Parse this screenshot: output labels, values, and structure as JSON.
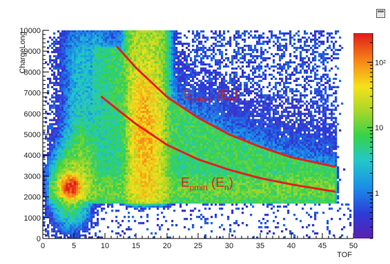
{
  "window": {
    "toolbar_icon": "canvas-editor-icon"
  },
  "chart_data": {
    "type": "heatmap",
    "title": "",
    "xlabel": "TOF",
    "ylabel": "ChargeLong",
    "xlim": [
      0,
      50
    ],
    "ylim": [
      0,
      10000
    ],
    "x_ticks": [
      "0",
      "5",
      "10",
      "15",
      "20",
      "25",
      "30",
      "35",
      "40",
      "45",
      "50"
    ],
    "y_ticks": [
      "0",
      "1000",
      "2000",
      "3000",
      "4000",
      "5000",
      "6000",
      "7000",
      "8000",
      "9000",
      "10000"
    ],
    "z_scale": "log",
    "z_ticks": [
      "1",
      "10",
      "10²"
    ],
    "z_tick_values": [
      1,
      10,
      100
    ],
    "z_range": [
      0.2,
      280
    ],
    "gamma_flash_x": 4.5,
    "gamma_flash_y": 2500,
    "curves": [
      {
        "name": "Epmax",
        "label_main": "E",
        "label_sub": "pmax",
        "label_arg": "(E",
        "label_arg_sub": "n",
        "label_close": ")",
        "color": "#e3211c",
        "points": [
          [
            12,
            9200
          ],
          [
            15,
            8200
          ],
          [
            20,
            6800
          ],
          [
            25,
            5800
          ],
          [
            30,
            5000
          ],
          [
            35,
            4400
          ],
          [
            40,
            3900
          ],
          [
            47,
            3450
          ]
        ]
      },
      {
        "name": "Epmin",
        "label_main": "E",
        "label_sub": "pmin",
        "label_arg": "(E",
        "label_arg_sub": "n",
        "label_close": ")",
        "color": "#e3211c",
        "points": [
          [
            9.5,
            6800
          ],
          [
            12,
            6200
          ],
          [
            15,
            5500
          ],
          [
            20,
            4500
          ],
          [
            25,
            3800
          ],
          [
            30,
            3300
          ],
          [
            35,
            2900
          ],
          [
            40,
            2600
          ],
          [
            47,
            2250
          ]
        ]
      }
    ]
  }
}
